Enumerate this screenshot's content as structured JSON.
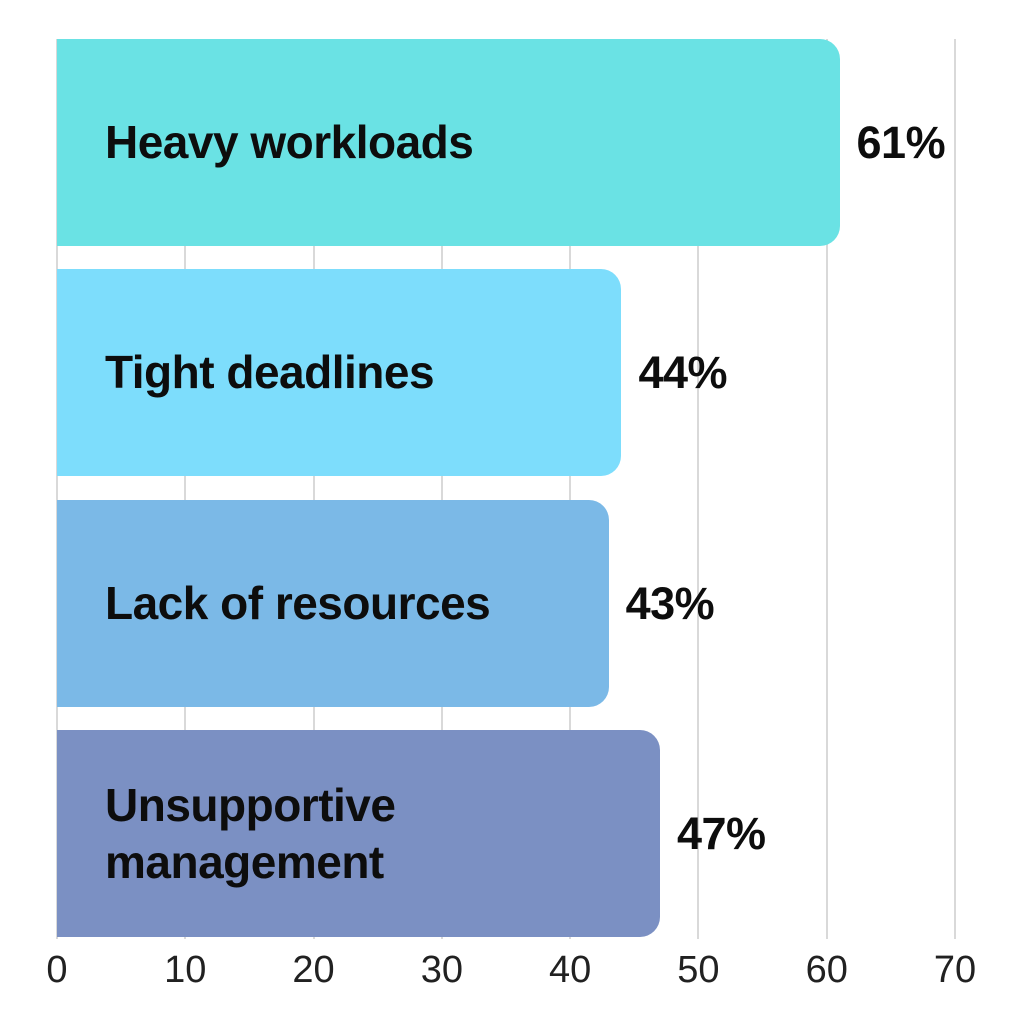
{
  "chart_data": {
    "type": "bar",
    "orientation": "horizontal",
    "title": "",
    "categories": [
      "Heavy workloads",
      "Tight deadlines",
      "Lack of resources",
      "Unsupportive management"
    ],
    "values": [
      61,
      44,
      43,
      47
    ],
    "value_labels": [
      "61%",
      "44%",
      "43%",
      "47%"
    ],
    "bar_colors": [
      "#6ae2e4",
      "#7dddfc",
      "#7bb9e7",
      "#7b90c3"
    ],
    "x_ticks": [
      0,
      10,
      20,
      30,
      40,
      50,
      60,
      70
    ],
    "x_tick_labels": [
      "0",
      "10",
      "20",
      "30",
      "40",
      "50",
      "60",
      "70"
    ],
    "xlim": [
      0,
      70
    ],
    "xlabel": "",
    "ylabel": "",
    "grid": true,
    "gridline_color": "#d9d9d9",
    "legend": false,
    "background_color": "#ffffff",
    "text_color": "#0d0d0d",
    "tick_text_color": "#212121"
  }
}
